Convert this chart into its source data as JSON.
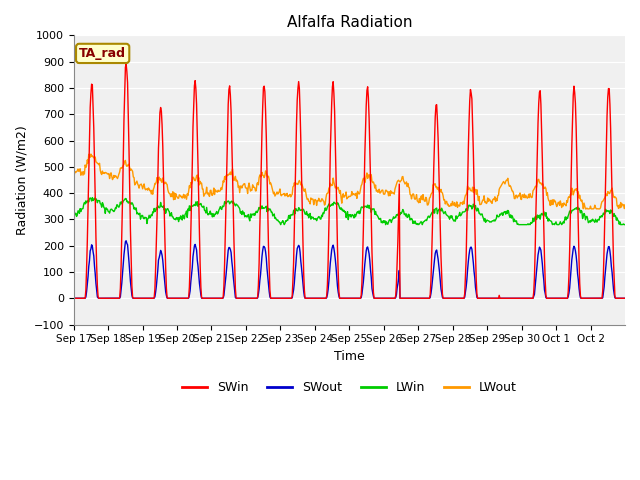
{
  "title": "Alfalfa Radiation",
  "xlabel": "Time",
  "ylabel": "Radiation (W/m2)",
  "ylim": [
    -100,
    1000
  ],
  "plot_bg": "#f0f0f0",
  "figure_color": "#ffffff",
  "annotation_text": "TA_rad",
  "annotation_bg": "#ffffcc",
  "annotation_border": "#aa8800",
  "xtick_labels": [
    "Sep 17",
    "Sep 18",
    "Sep 19",
    "Sep 20",
    "Sep 21",
    "Sep 22",
    "Sep 23",
    "Sep 24",
    "Sep 25",
    "Sep 26",
    "Sep 27",
    "Sep 28",
    "Sep 29",
    "Sep 30",
    "Oct 1",
    "Oct 2"
  ],
  "colors": {
    "SWin": "#ff0000",
    "SWout": "#0000cc",
    "LWin": "#00cc00",
    "LWout": "#ff9900"
  },
  "line_width": 1.0,
  "yticks": [
    -100,
    0,
    100,
    200,
    300,
    400,
    500,
    600,
    700,
    800,
    900,
    1000
  ]
}
